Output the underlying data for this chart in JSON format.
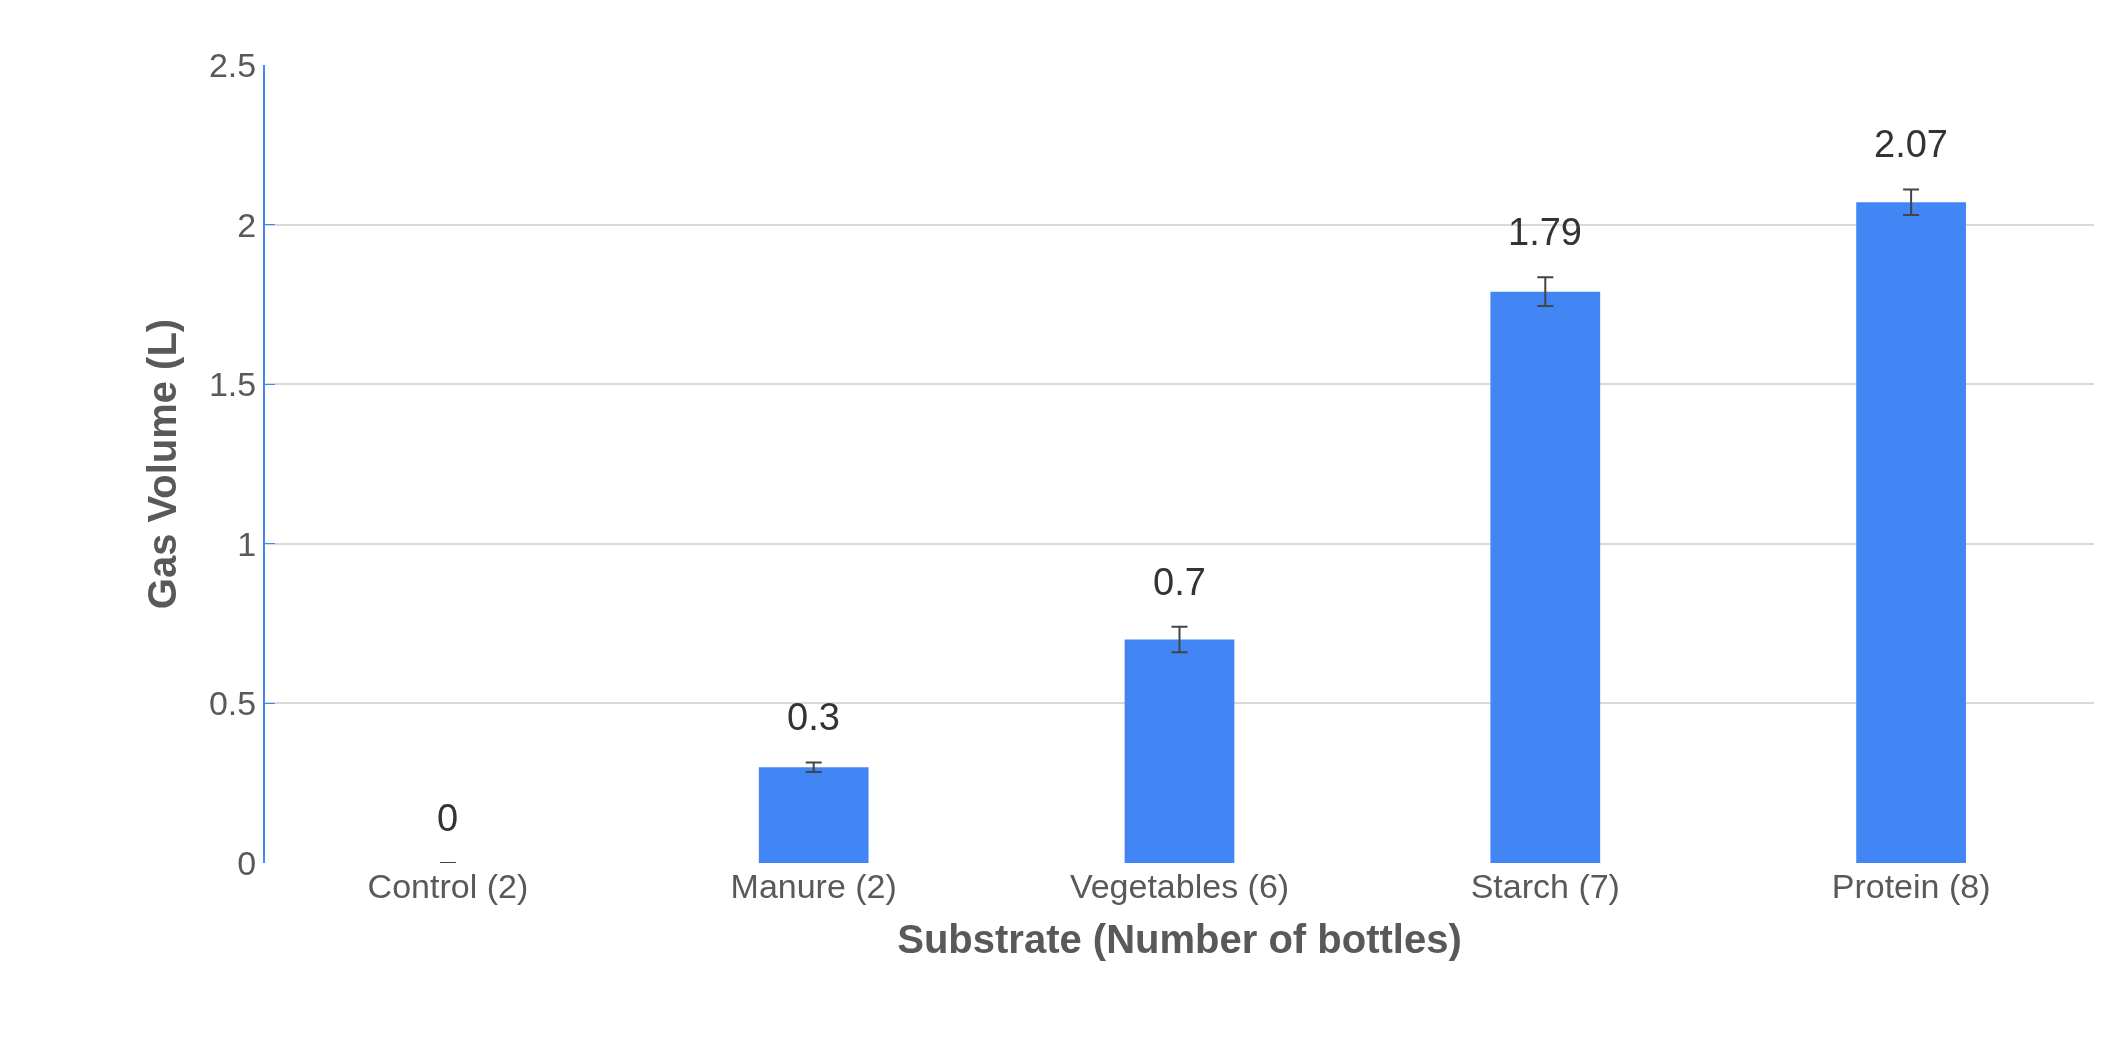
{
  "chart_data": {
    "type": "bar",
    "xlabel": "Substrate (Number of bottles)",
    "ylabel": "Gas Volume (L)",
    "categories": [
      "Control (2)",
      "Manure (2)",
      "Vegetables (6)",
      "Starch (7)",
      "Protein (8)"
    ],
    "values": [
      0,
      0.3,
      0.7,
      1.79,
      2.07
    ],
    "errors": [
      null,
      0.015,
      0.04,
      0.045,
      0.04
    ],
    "color": "#4285f4",
    "ylim": [
      0,
      2.5
    ],
    "yticks": [
      0,
      0.5,
      1,
      1.5,
      2,
      2.5
    ],
    "grid": "y",
    "data_labels": true
  }
}
